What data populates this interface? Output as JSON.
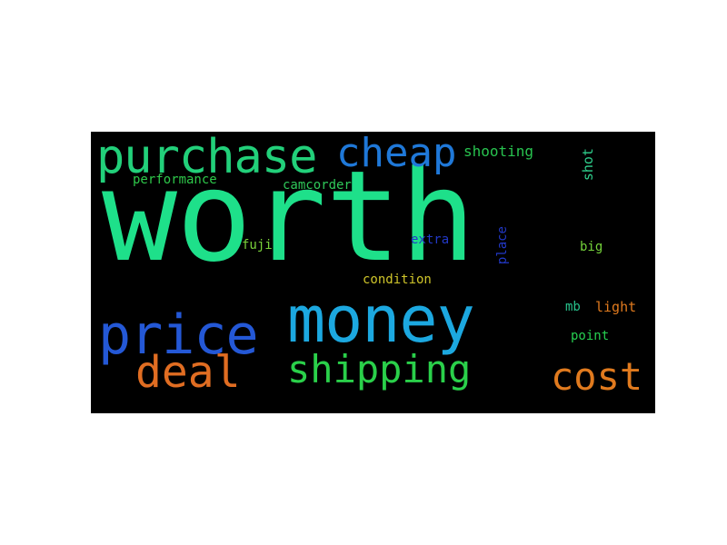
{
  "wordcloud": {
    "background": "#000000",
    "words": {
      "worth": {
        "text": "worth",
        "color": "#1ee08a"
      },
      "purchase": {
        "text": "purchase",
        "color": "#22d07a"
      },
      "cheap": {
        "text": "cheap",
        "color": "#1f78d8"
      },
      "shooting": {
        "text": "shooting",
        "color": "#28c34f"
      },
      "performance": {
        "text": "performance",
        "color": "#2ec84a"
      },
      "camcorder": {
        "text": "camcorder",
        "color": "#2fc95a"
      },
      "shot": {
        "text": "shot",
        "color": "#2fcf8c"
      },
      "fuji": {
        "text": "fuji",
        "color": "#7ad23a"
      },
      "extra": {
        "text": "extra",
        "color": "#2238c8"
      },
      "place": {
        "text": "place",
        "color": "#2238c8"
      },
      "big": {
        "text": "big",
        "color": "#74d23a"
      },
      "condition": {
        "text": "condition",
        "color": "#cfc52a"
      },
      "money": {
        "text": "money",
        "color": "#1ca8e0"
      },
      "price": {
        "text": "price",
        "color": "#2458d6"
      },
      "mb": {
        "text": "mb",
        "color": "#27c28c"
      },
      "light": {
        "text": "light",
        "color": "#e07a1e"
      },
      "point": {
        "text": "point",
        "color": "#26cf50"
      },
      "deal": {
        "text": "deal",
        "color": "#e06d22"
      },
      "shipping": {
        "text": "shipping",
        "color": "#2ad04a"
      },
      "cost": {
        "text": "cost",
        "color": "#e07a1e"
      }
    }
  }
}
